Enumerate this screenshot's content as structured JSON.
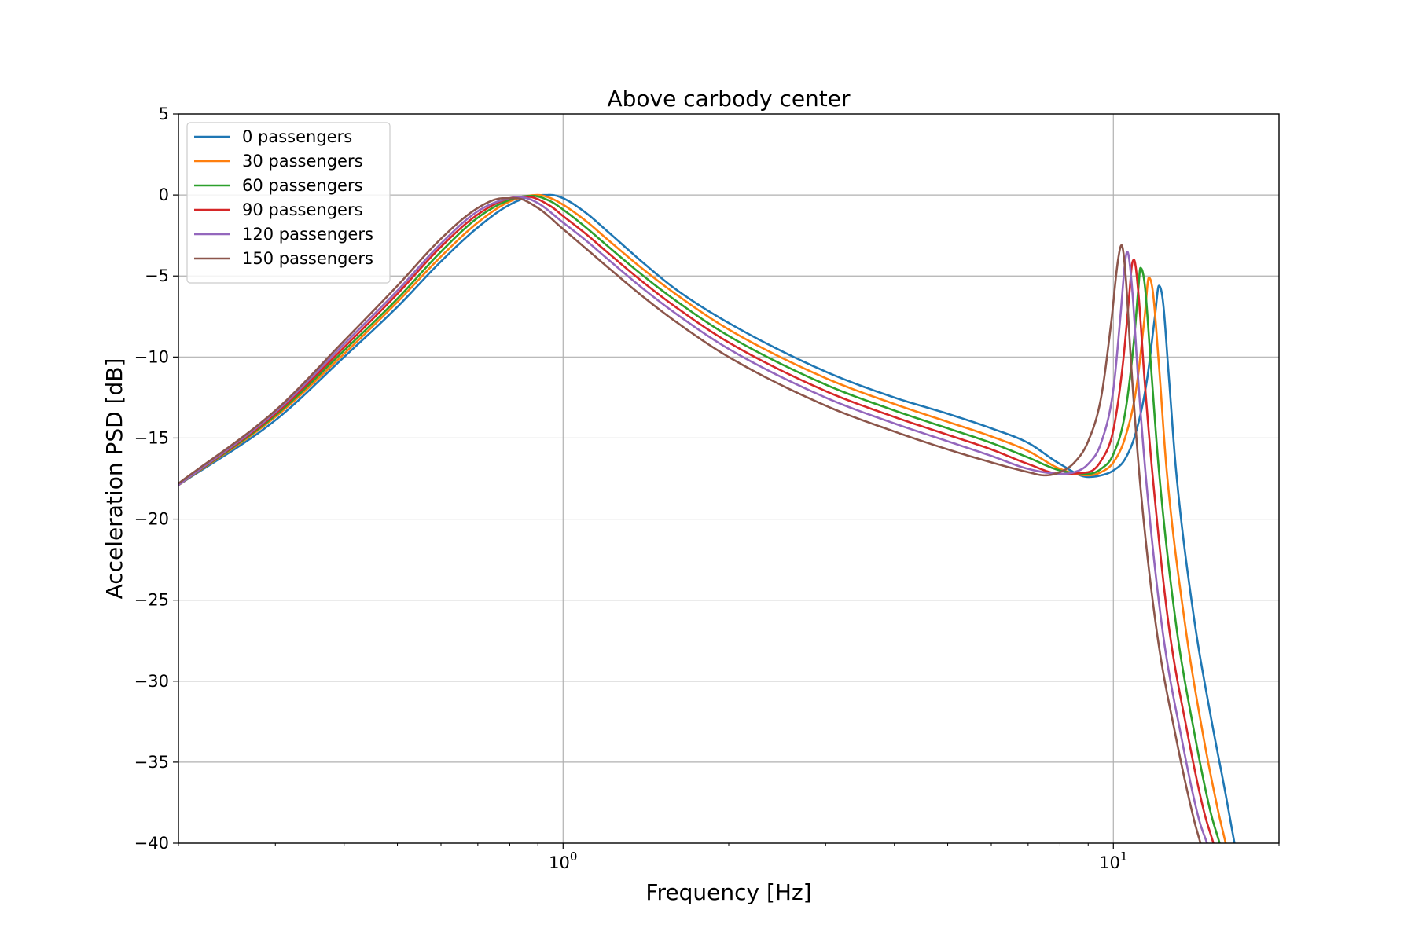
{
  "chart_data": {
    "type": "line",
    "title": "Above carbody center",
    "xlabel": "Frequency [Hz]",
    "ylabel": "Acceleration PSD [dB]",
    "xscale": "log",
    "xlim": [
      0.2,
      20
    ],
    "ylim": [
      -40,
      5
    ],
    "grid": true,
    "legend_position": "top-left",
    "x_ticks": [
      {
        "value": 1,
        "base": "10",
        "exp": "0"
      },
      {
        "value": 10,
        "base": "10",
        "exp": "1"
      }
    ],
    "y_ticks": [
      {
        "value": 5,
        "label": "5"
      },
      {
        "value": 0,
        "label": "0"
      },
      {
        "value": -5,
        "label": "−5"
      },
      {
        "value": -10,
        "label": "−10"
      },
      {
        "value": -15,
        "label": "−15"
      },
      {
        "value": -20,
        "label": "−20"
      },
      {
        "value": -25,
        "label": "−25"
      },
      {
        "value": -30,
        "label": "−30"
      },
      {
        "value": -35,
        "label": "−35"
      },
      {
        "value": -40,
        "label": "−40"
      }
    ],
    "series": [
      {
        "name": "0 passengers",
        "color": "#1f77b4",
        "points": [
          [
            0.2,
            -17.9
          ],
          [
            0.3,
            -13.9
          ],
          [
            0.4,
            -10.0
          ],
          [
            0.5,
            -6.9
          ],
          [
            0.6,
            -4.1
          ],
          [
            0.7,
            -2.0
          ],
          [
            0.8,
            -0.6
          ],
          [
            0.9,
            -0.02
          ],
          [
            0.95,
            0
          ],
          [
            1.0,
            -0.2
          ],
          [
            1.1,
            -1.1
          ],
          [
            1.2,
            -2.2
          ],
          [
            1.4,
            -4.2
          ],
          [
            1.6,
            -5.8
          ],
          [
            2.0,
            -7.9
          ],
          [
            3.0,
            -10.9
          ],
          [
            4.0,
            -12.5
          ],
          [
            5.0,
            -13.5
          ],
          [
            6.0,
            -14.4
          ],
          [
            7.0,
            -15.3
          ],
          [
            8.0,
            -16.6
          ],
          [
            9.0,
            -17.4
          ],
          [
            9.5,
            -17.3
          ],
          [
            10.0,
            -17.0
          ],
          [
            10.5,
            -16.3
          ],
          [
            11.0,
            -14.6
          ],
          [
            11.5,
            -11.5
          ],
          [
            11.9,
            -7.5
          ],
          [
            12.1,
            -5.6
          ],
          [
            12.3,
            -6.5
          ],
          [
            12.6,
            -11.0
          ],
          [
            13.0,
            -17.0
          ],
          [
            14.0,
            -26.0
          ],
          [
            15.0,
            -32.0
          ],
          [
            16.0,
            -37.0
          ],
          [
            16.6,
            -40.0
          ]
        ]
      },
      {
        "name": "30 passengers",
        "color": "#ff7f0e",
        "points": [
          [
            0.2,
            -17.9
          ],
          [
            0.3,
            -13.7
          ],
          [
            0.4,
            -9.8
          ],
          [
            0.5,
            -6.6
          ],
          [
            0.6,
            -3.8
          ],
          [
            0.7,
            -1.7
          ],
          [
            0.8,
            -0.4
          ],
          [
            0.9,
            0
          ],
          [
            0.95,
            -0.2
          ],
          [
            1.0,
            -0.6
          ],
          [
            1.1,
            -1.6
          ],
          [
            1.2,
            -2.7
          ],
          [
            1.4,
            -4.6
          ],
          [
            1.6,
            -6.1
          ],
          [
            2.0,
            -8.3
          ],
          [
            3.0,
            -11.3
          ],
          [
            4.0,
            -12.9
          ],
          [
            5.0,
            -14.0
          ],
          [
            6.0,
            -14.9
          ],
          [
            7.0,
            -15.8
          ],
          [
            8.0,
            -16.9
          ],
          [
            9.0,
            -17.3
          ],
          [
            9.5,
            -17.1
          ],
          [
            10.0,
            -16.5
          ],
          [
            10.5,
            -15.0
          ],
          [
            11.0,
            -12.0
          ],
          [
            11.4,
            -7.5
          ],
          [
            11.6,
            -5.1
          ],
          [
            11.8,
            -6.0
          ],
          [
            12.1,
            -10.5
          ],
          [
            12.5,
            -17.0
          ],
          [
            13.5,
            -26.5
          ],
          [
            14.5,
            -33.0
          ],
          [
            15.5,
            -38.0
          ],
          [
            16.0,
            -40.0
          ]
        ]
      },
      {
        "name": "60 passengers",
        "color": "#2ca02c",
        "points": [
          [
            0.2,
            -17.9
          ],
          [
            0.3,
            -13.6
          ],
          [
            0.4,
            -9.6
          ],
          [
            0.5,
            -6.4
          ],
          [
            0.6,
            -3.5
          ],
          [
            0.7,
            -1.4
          ],
          [
            0.8,
            -0.3
          ],
          [
            0.88,
            -0.05
          ],
          [
            0.95,
            -0.4
          ],
          [
            1.0,
            -0.9
          ],
          [
            1.1,
            -2.0
          ],
          [
            1.2,
            -3.1
          ],
          [
            1.4,
            -5.0
          ],
          [
            1.6,
            -6.5
          ],
          [
            2.0,
            -8.7
          ],
          [
            3.0,
            -11.7
          ],
          [
            4.0,
            -13.3
          ],
          [
            5.0,
            -14.4
          ],
          [
            6.0,
            -15.3
          ],
          [
            7.0,
            -16.2
          ],
          [
            8.0,
            -17.0
          ],
          [
            9.0,
            -17.2
          ],
          [
            9.5,
            -16.9
          ],
          [
            10.0,
            -16.0
          ],
          [
            10.5,
            -13.5
          ],
          [
            10.9,
            -9.0
          ],
          [
            11.1,
            -5.8
          ],
          [
            11.2,
            -4.5
          ],
          [
            11.4,
            -5.5
          ],
          [
            11.7,
            -10.5
          ],
          [
            12.1,
            -17.0
          ],
          [
            13.0,
            -26.5
          ],
          [
            14.0,
            -33.0
          ],
          [
            15.0,
            -38.0
          ],
          [
            15.6,
            -40.0
          ]
        ]
      },
      {
        "name": "90 passengers",
        "color": "#d62728",
        "points": [
          [
            0.2,
            -17.9
          ],
          [
            0.3,
            -13.5
          ],
          [
            0.4,
            -9.4
          ],
          [
            0.5,
            -6.1
          ],
          [
            0.6,
            -3.2
          ],
          [
            0.7,
            -1.2
          ],
          [
            0.8,
            -0.2
          ],
          [
            0.86,
            -0.1
          ],
          [
            0.95,
            -0.7
          ],
          [
            1.0,
            -1.3
          ],
          [
            1.1,
            -2.4
          ],
          [
            1.2,
            -3.5
          ],
          [
            1.4,
            -5.4
          ],
          [
            1.6,
            -6.9
          ],
          [
            2.0,
            -9.1
          ],
          [
            3.0,
            -12.1
          ],
          [
            4.0,
            -13.7
          ],
          [
            5.0,
            -14.8
          ],
          [
            6.0,
            -15.7
          ],
          [
            7.0,
            -16.6
          ],
          [
            8.0,
            -17.2
          ],
          [
            9.0,
            -17.1
          ],
          [
            9.5,
            -16.4
          ],
          [
            10.0,
            -14.5
          ],
          [
            10.4,
            -10.5
          ],
          [
            10.7,
            -6.0
          ],
          [
            10.8,
            -4.4
          ],
          [
            10.9,
            -4.0
          ],
          [
            11.1,
            -6.0
          ],
          [
            11.4,
            -11.5
          ],
          [
            11.8,
            -17.5
          ],
          [
            12.6,
            -26.5
          ],
          [
            13.6,
            -33.0
          ],
          [
            14.6,
            -38.0
          ],
          [
            15.2,
            -40.0
          ]
        ]
      },
      {
        "name": "120 passengers",
        "color": "#9467bd",
        "points": [
          [
            0.2,
            -17.9
          ],
          [
            0.3,
            -13.4
          ],
          [
            0.4,
            -9.2
          ],
          [
            0.5,
            -5.9
          ],
          [
            0.6,
            -3.0
          ],
          [
            0.7,
            -1.0
          ],
          [
            0.8,
            -0.2
          ],
          [
            0.84,
            -0.15
          ],
          [
            0.9,
            -0.5
          ],
          [
            1.0,
            -1.7
          ],
          [
            1.1,
            -2.8
          ],
          [
            1.2,
            -3.9
          ],
          [
            1.4,
            -5.8
          ],
          [
            1.6,
            -7.3
          ],
          [
            2.0,
            -9.5
          ],
          [
            3.0,
            -12.5
          ],
          [
            4.0,
            -14.1
          ],
          [
            5.0,
            -15.2
          ],
          [
            6.0,
            -16.1
          ],
          [
            7.0,
            -16.9
          ],
          [
            8.0,
            -17.2
          ],
          [
            8.5,
            -17.1
          ],
          [
            9.0,
            -16.6
          ],
          [
            9.5,
            -15.3
          ],
          [
            10.0,
            -12.0
          ],
          [
            10.3,
            -7.5
          ],
          [
            10.5,
            -4.2
          ],
          [
            10.6,
            -3.5
          ],
          [
            10.8,
            -5.5
          ],
          [
            11.1,
            -11.5
          ],
          [
            11.5,
            -18.0
          ],
          [
            12.3,
            -27.0
          ],
          [
            13.3,
            -33.5
          ],
          [
            14.3,
            -38.5
          ],
          [
            14.8,
            -40.0
          ]
        ]
      },
      {
        "name": "150 passengers",
        "color": "#8c564b",
        "points": [
          [
            0.2,
            -17.8
          ],
          [
            0.3,
            -13.3
          ],
          [
            0.4,
            -9.0
          ],
          [
            0.5,
            -5.6
          ],
          [
            0.6,
            -2.7
          ],
          [
            0.7,
            -0.8
          ],
          [
            0.78,
            -0.2
          ],
          [
            0.82,
            -0.2
          ],
          [
            0.9,
            -0.8
          ],
          [
            1.0,
            -2.1
          ],
          [
            1.1,
            -3.3
          ],
          [
            1.2,
            -4.4
          ],
          [
            1.4,
            -6.3
          ],
          [
            1.6,
            -7.8
          ],
          [
            2.0,
            -10.0
          ],
          [
            3.0,
            -13.0
          ],
          [
            4.0,
            -14.6
          ],
          [
            5.0,
            -15.7
          ],
          [
            6.0,
            -16.5
          ],
          [
            7.0,
            -17.1
          ],
          [
            7.5,
            -17.3
          ],
          [
            8.0,
            -17.1
          ],
          [
            8.5,
            -16.5
          ],
          [
            9.0,
            -15.2
          ],
          [
            9.5,
            -12.5
          ],
          [
            9.9,
            -8.0
          ],
          [
            10.2,
            -4.0
          ],
          [
            10.35,
            -3.1
          ],
          [
            10.5,
            -4.5
          ],
          [
            10.8,
            -11.0
          ],
          [
            11.2,
            -18.0
          ],
          [
            12.0,
            -27.0
          ],
          [
            13.0,
            -33.5
          ],
          [
            14.0,
            -38.5
          ],
          [
            14.4,
            -40.0
          ]
        ]
      }
    ]
  }
}
